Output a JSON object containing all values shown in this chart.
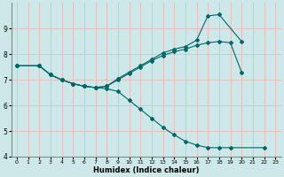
{
  "xlabel": "Humidex (Indice chaleur)",
  "xlim": [
    -0.5,
    23.5
  ],
  "ylim": [
    4,
    10
  ],
  "yticks": [
    4,
    5,
    6,
    7,
    8,
    9
  ],
  "xticks": [
    0,
    1,
    2,
    3,
    4,
    5,
    6,
    7,
    8,
    9,
    10,
    11,
    12,
    13,
    14,
    15,
    16,
    17,
    18,
    19,
    20,
    21,
    22,
    23
  ],
  "bg_color": "#cce8e8",
  "grid_color": "#e8b8b8",
  "line_color": "#006868",
  "lines": [
    {
      "x": [
        0,
        2,
        3,
        4,
        5,
        6,
        7,
        8,
        9,
        10,
        11,
        12,
        13,
        14,
        15,
        16,
        17,
        18,
        20
      ],
      "y": [
        7.55,
        7.55,
        7.2,
        7.0,
        6.85,
        6.75,
        6.7,
        6.75,
        7.05,
        7.3,
        7.55,
        7.8,
        8.05,
        8.2,
        8.3,
        8.55,
        9.5,
        9.55,
        8.5
      ]
    },
    {
      "x": [
        0,
        2,
        3,
        4,
        5,
        6,
        7,
        8,
        9,
        10,
        11,
        12,
        13,
        14,
        15,
        16,
        17,
        18,
        19,
        20,
        21
      ],
      "y": [
        7.55,
        7.55,
        7.2,
        7.0,
        6.85,
        6.75,
        6.7,
        6.75,
        7.0,
        7.25,
        7.5,
        7.75,
        7.95,
        8.1,
        8.2,
        8.35,
        8.45,
        8.5,
        8.45,
        7.3,
        null
      ]
    },
    {
      "x": [
        0,
        2,
        3,
        4,
        5,
        6,
        7,
        8,
        9,
        10,
        11,
        12,
        13,
        14,
        15,
        16,
        17,
        18,
        19,
        20,
        21,
        22
      ],
      "y": [
        7.55,
        7.55,
        7.2,
        7.0,
        6.85,
        6.75,
        6.7,
        6.65,
        6.55,
        6.2,
        5.85,
        5.5,
        5.15,
        4.85,
        4.6,
        4.45,
        4.35,
        4.35,
        4.35,
        null,
        null,
        4.35
      ]
    }
  ]
}
